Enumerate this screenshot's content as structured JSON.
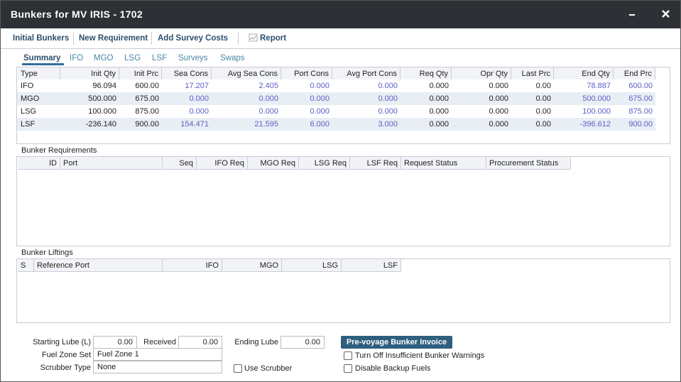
{
  "window": {
    "title": "Bunkers for MV IRIS - 1702"
  },
  "toolbar": [
    "Initial Bunkers",
    "New Requirement",
    "Add Survey Costs",
    "Report"
  ],
  "tabs": [
    "Summary",
    "IFO",
    "MGO",
    "LSG",
    "LSF",
    "Surveys",
    "Swaps"
  ],
  "summary_table": {
    "columns": [
      "Type",
      "Init Qty",
      "Init Prc",
      "Sea Cons",
      "Avg Sea Cons",
      "Port Cons",
      "Avg Port Cons",
      "Req Qty",
      "Opr Qty",
      "Last Prc",
      "End Qty",
      "End Prc"
    ],
    "rows": [
      [
        "IFO",
        "96.094",
        "600.00",
        "17.207",
        "2.405",
        "0.000",
        "0.000",
        "0.000",
        "0.000",
        "0.00",
        "78.887",
        "600.00"
      ],
      [
        "MGO",
        "500.000",
        "675.00",
        "0.000",
        "0.000",
        "0.000",
        "0.000",
        "0.000",
        "0.000",
        "0.00",
        "500.000",
        "675.00"
      ],
      [
        "LSG",
        "100.000",
        "875.00",
        "0.000",
        "0.000",
        "0.000",
        "0.000",
        "0.000",
        "0.000",
        "0.00",
        "100.000",
        "875.00"
      ],
      [
        "LSF",
        "-236.140",
        "900.00",
        "154.471",
        "21.595",
        "6.000",
        "3.000",
        "0.000",
        "0.000",
        "0.00",
        "-396.612",
        "900.00"
      ]
    ]
  },
  "requirements": {
    "title": "Bunker Requirements",
    "columns": [
      "ID",
      "Port",
      "Seq",
      "IFO Req",
      "MGO Req",
      "LSG Req",
      "LSF Req",
      "Request Status",
      "Procurement Status"
    ]
  },
  "liftings": {
    "title": "Bunker Liftings",
    "columns": [
      "S",
      "Reference Port",
      "IFO",
      "MGO",
      "LSG",
      "LSF"
    ]
  },
  "footer": {
    "starting_lube": {
      "label": "Starting Lube (L)",
      "value": "0.00"
    },
    "received": {
      "label": "Received",
      "value": "0.00"
    },
    "ending_lube": {
      "label": "Ending Lube",
      "value": "0.00"
    },
    "fuel_zone_set": {
      "label": "Fuel Zone Set",
      "value": "Fuel Zone 1"
    },
    "scrubber_type": {
      "label": "Scrubber Type",
      "value": "None"
    },
    "use_scrubber": "Use Scrubber",
    "invoice_button": "Pre-voyage Bunker Invoice",
    "turn_off_warnings": "Turn Off Insufficient Bunker Warnings",
    "disable_backup": "Disable Backup Fuels"
  }
}
